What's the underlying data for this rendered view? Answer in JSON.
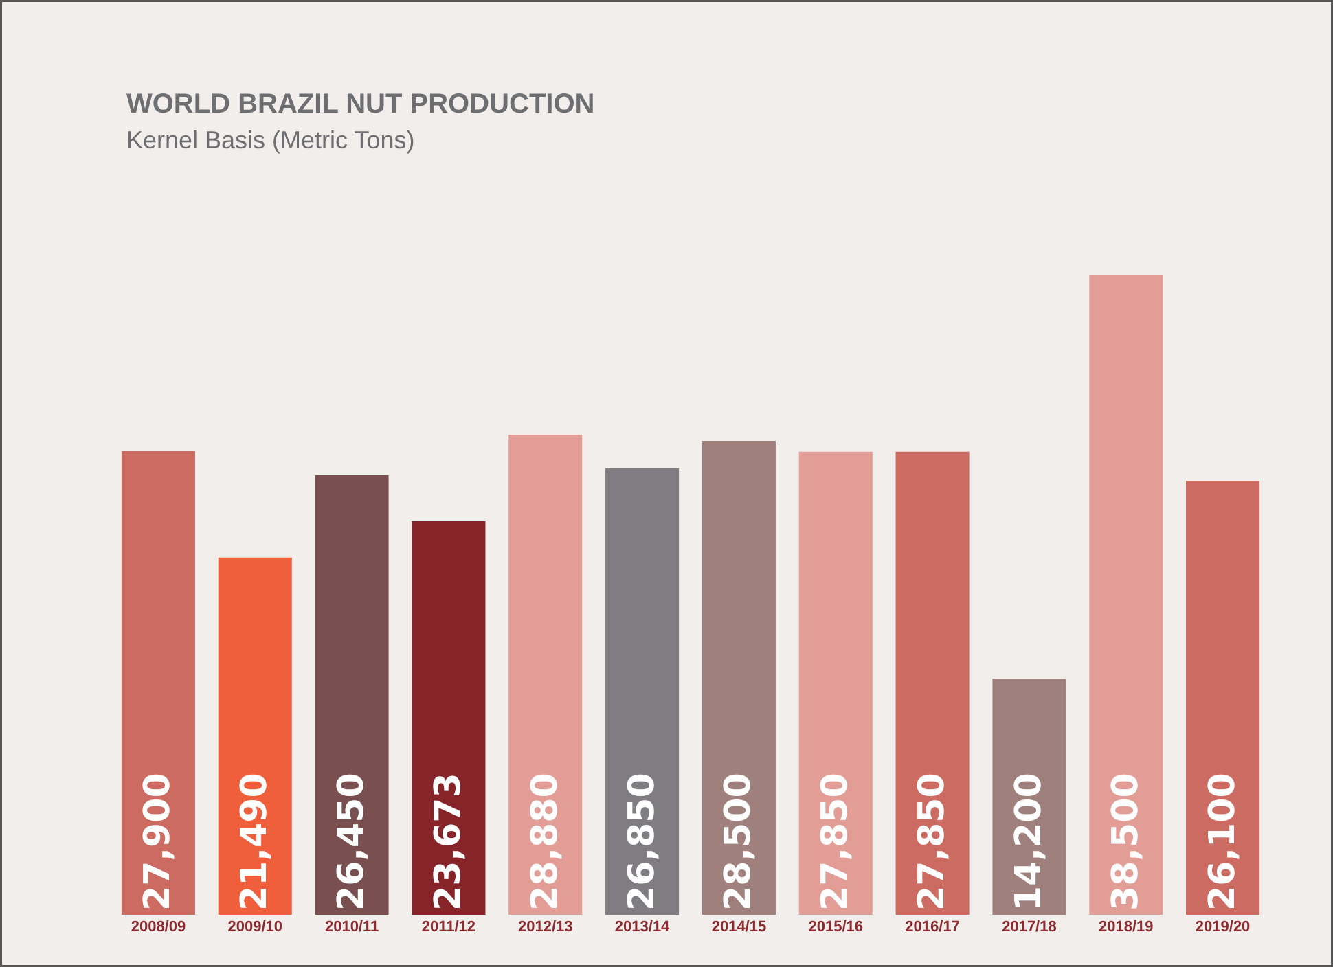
{
  "chart_data": {
    "type": "bar",
    "title": "WORLD BRAZIL NUT PRODUCTION",
    "subtitle": "Kernel Basis (Metric Tons)",
    "categories": [
      "2008/09",
      "2009/10",
      "2010/11",
      "2011/12",
      "2012/13",
      "2013/14",
      "2014/15",
      "2015/16",
      "2016/17",
      "2017/18",
      "2018/19",
      "2019/20"
    ],
    "values": [
      27900,
      21490,
      26450,
      23673,
      28880,
      26850,
      28500,
      27850,
      27850,
      14200,
      38500,
      26100
    ],
    "colors": [
      "#cc6b62",
      "#ef5f3c",
      "#7a4f4f",
      "#87242a",
      "#e29e96",
      "#7f7d82",
      "#a0807c",
      "#e29e96",
      "#cc6b62",
      "#a0807c",
      "#e29e96",
      "#cc6b62"
    ],
    "value_labels": [
      "27,900",
      "21,490",
      "26,450",
      "23,673",
      "28,880",
      "26,850",
      "28,500",
      "27,850",
      "27,850",
      "14,200",
      "38,500",
      "26,100"
    ]
  }
}
